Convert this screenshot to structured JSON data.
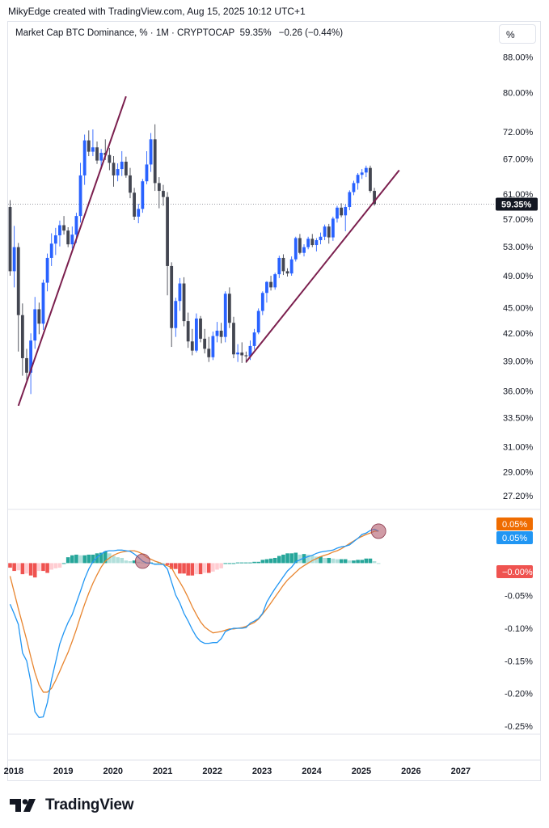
{
  "header": {
    "credit": "MikyEdge created with TradingView.com, Aug 15, 2025 10:12 UTC+1",
    "symbol": "Market Cap BTC Dominance, % · 1M · CRYPTOCAP",
    "last": "59.35%",
    "change": "−0.26 (−0.44%)",
    "scale_button": "%"
  },
  "brand": {
    "name": "TradingView"
  },
  "colors": {
    "up": "#2962ff",
    "down": "#434651",
    "trendline": "#7b1f4e",
    "macd": "#2196f3",
    "signal": "#e8852f",
    "hist_up_strong": "#26a69a",
    "hist_up_weak": "#b2dfdb",
    "hist_dn_strong": "#ef5350",
    "hist_dn_weak": "#ffcdd2"
  },
  "chart_data": [
    {
      "type": "candlestick",
      "title": "Market Cap BTC Dominance, % · 1M · CRYPTOCAP",
      "scale": "log",
      "ylim": [
        26.5,
        92
      ],
      "y_ticks": [
        "88.00%",
        "80.00%",
        "72.00%",
        "67.00%",
        "61.00%",
        "57.00%",
        "53.00%",
        "49.00%",
        "45.00%",
        "42.00%",
        "39.00%",
        "36.00%",
        "33.50%",
        "31.00%",
        "29.00%",
        "27.20%"
      ],
      "y_tick_values": [
        88,
        80,
        72,
        67,
        61,
        57,
        53,
        49,
        45,
        42,
        39,
        36,
        33.5,
        31,
        29,
        27.2
      ],
      "x_ticks": [
        "2018",
        "2019",
        "2020",
        "2021",
        "2022",
        "2023",
        "2024",
        "2025",
        "2026",
        "2027"
      ],
      "current_value_label": "59.35%",
      "start": "2017-12",
      "ohlc": [
        [
          58.9,
          60,
          49,
          49.6
        ],
        [
          49.6,
          56,
          47.5,
          52.9
        ],
        [
          52.9,
          53.5,
          40,
          44.1
        ],
        [
          44.1,
          45.5,
          37.5,
          39.3
        ],
        [
          39.3,
          40.3,
          36.8,
          37.8
        ],
        [
          37.8,
          42,
          35.7,
          41.2
        ],
        [
          41.2,
          46.3,
          40.3,
          44.8
        ],
        [
          44.8,
          45.6,
          41.9,
          43.1
        ],
        [
          43.1,
          48.5,
          42.4,
          48.1
        ],
        [
          48.1,
          52,
          47,
          51.4
        ],
        [
          51.4,
          54.9,
          50.3,
          53.4
        ],
        [
          53.4,
          55.7,
          51.8,
          54.6
        ],
        [
          54.6,
          56.8,
          53,
          56.1
        ],
        [
          56.1,
          57.5,
          54.7,
          55.3
        ],
        [
          55.3,
          55.8,
          52.9,
          53.3
        ],
        [
          53.3,
          55.9,
          52.7,
          54.7
        ],
        [
          54.7,
          58,
          53.5,
          57.5
        ],
        [
          57.5,
          66.3,
          56.5,
          64.1
        ],
        [
          64.1,
          71.5,
          62.5,
          70.4
        ],
        [
          70.4,
          72.3,
          67.5,
          68.3
        ],
        [
          68.3,
          72.5,
          67.5,
          69.1
        ],
        [
          69.1,
          70.2,
          66.1,
          66.7
        ],
        [
          66.7,
          68.8,
          65.2,
          68.1
        ],
        [
          68.1,
          70.6,
          66.8,
          67.7
        ],
        [
          67.7,
          69,
          65,
          66.3
        ],
        [
          66.3,
          67.5,
          62.2,
          64.1
        ],
        [
          64.1,
          66.2,
          63.1,
          65.2
        ],
        [
          65.2,
          68.4,
          64,
          66.5
        ],
        [
          66.5,
          67.4,
          63.7,
          64.1
        ],
        [
          64.1,
          65.4,
          60.3,
          61.2
        ],
        [
          61.2,
          62,
          56.9,
          57.4
        ],
        [
          57.4,
          59.4,
          56.4,
          58.6
        ],
        [
          58.6,
          63.5,
          58,
          63.1
        ],
        [
          63.1,
          68.4,
          62.6,
          66
        ],
        [
          66,
          71.8,
          64.7,
          70.6
        ],
        [
          70.6,
          73.5,
          61.5,
          62.8
        ],
        [
          62.8,
          63.8,
          58.7,
          61.5
        ],
        [
          61.5,
          62.5,
          59.1,
          60.5
        ],
        [
          60.5,
          61.3,
          46.5,
          50.3
        ],
        [
          50.3,
          50.8,
          40.5,
          42.6
        ],
        [
          42.6,
          46.2,
          41.6,
          45.8
        ],
        [
          45.8,
          48.7,
          44.6,
          48
        ],
        [
          48,
          48.8,
          42.8,
          43.4
        ],
        [
          43.4,
          44.4,
          40.4,
          41.1
        ],
        [
          41.1,
          42.5,
          39.6,
          40.1
        ],
        [
          40.1,
          44.3,
          39.9,
          43.7
        ],
        [
          43.7,
          44,
          41,
          41.4
        ],
        [
          41.4,
          42.5,
          39.8,
          40.3
        ],
        [
          40.3,
          41.6,
          38.9,
          39.4
        ],
        [
          39.4,
          42.2,
          39.1,
          41.7
        ],
        [
          41.7,
          43.3,
          41,
          42.3
        ],
        [
          42.3,
          43.2,
          40.9,
          41.6
        ],
        [
          41.6,
          47,
          41,
          46.7
        ],
        [
          46.7,
          47.5,
          42.6,
          43.2
        ],
        [
          43.2,
          43.9,
          39.3,
          39.7
        ],
        [
          39.7,
          40.8,
          38.9,
          39.9
        ],
        [
          39.9,
          41,
          38.8,
          39.6
        ],
        [
          39.6,
          40,
          38.8,
          39.5
        ],
        [
          39.5,
          41.2,
          39.1,
          40.6
        ],
        [
          40.6,
          42.5,
          40.2,
          42.1
        ],
        [
          42.1,
          44.9,
          41.9,
          44.6
        ],
        [
          44.6,
          47,
          44.1,
          46.8
        ],
        [
          46.8,
          48.3,
          45.6,
          48.2
        ],
        [
          48.2,
          49,
          47.1,
          47.5
        ],
        [
          47.5,
          49.4,
          47.2,
          49.2
        ],
        [
          49.2,
          51.7,
          48.7,
          51.4
        ],
        [
          51.4,
          51.9,
          49.1,
          49.6
        ],
        [
          49.6,
          50,
          48.9,
          49.3
        ],
        [
          49.3,
          51.6,
          49,
          51.2
        ],
        [
          51.2,
          54.4,
          50.9,
          54.2
        ],
        [
          54.2,
          54.8,
          51.9,
          52.1
        ],
        [
          52.1,
          53.3,
          51.6,
          52.9
        ],
        [
          52.9,
          54.4,
          52.6,
          54.1
        ],
        [
          54.1,
          54.8,
          52.9,
          53.2
        ],
        [
          53.2,
          54.2,
          52.3,
          53.9
        ],
        [
          53.9,
          55,
          53.3,
          54.4
        ],
        [
          54.4,
          56.2,
          53.9,
          55.9
        ],
        [
          55.9,
          56.3,
          53.4,
          54.3
        ],
        [
          54.3,
          57.4,
          53.8,
          57.1
        ],
        [
          57.1,
          59.1,
          56.5,
          58.8
        ],
        [
          58.8,
          59.5,
          57.3,
          57.6
        ],
        [
          57.6,
          59.3,
          55.2,
          58.9
        ],
        [
          58.9,
          61.6,
          58.4,
          61.3
        ],
        [
          61.3,
          63.2,
          60.8,
          62.8
        ],
        [
          62.8,
          64.5,
          61.7,
          64.2
        ],
        [
          64.2,
          65.2,
          63.5,
          64.6
        ],
        [
          64.6,
          65.8,
          63.8,
          65.4
        ],
        [
          65.4,
          65.8,
          61.2,
          61.5
        ],
        [
          61.5,
          62,
          59.1,
          59.35
        ]
      ],
      "trendlines": [
        {
          "from": [
            "2018-02",
            34.6
          ],
          "to": [
            "2020-04",
            79.2
          ]
        },
        {
          "from": [
            "2022-09",
            38.9
          ],
          "to": [
            "2025-10",
            65.0
          ]
        }
      ]
    },
    {
      "type": "macd",
      "ylim": [
        -0.265,
        0.07
      ],
      "y_ticks": [
        "-0.05%",
        "-0.10%",
        "-0.15%",
        "-0.20%",
        "-0.25%"
      ],
      "y_tick_values": [
        -0.05,
        -0.1,
        -0.15,
        -0.2,
        -0.25
      ],
      "labels": [
        "0.05%",
        "0.05%",
        "−0.00%"
      ],
      "macd": [
        -0.063,
        -0.078,
        -0.094,
        -0.138,
        -0.15,
        -0.182,
        -0.228,
        -0.237,
        -0.236,
        -0.214,
        -0.179,
        -0.152,
        -0.124,
        -0.106,
        -0.091,
        -0.079,
        -0.061,
        -0.043,
        -0.024,
        -0.009,
        0.002,
        0.009,
        0.014,
        0.018,
        0.019,
        0.019,
        0.02,
        0.02,
        0.019,
        0.018,
        0.014,
        0.009,
        0.003,
        0,
        0,
        -0.002,
        -0.002,
        -0.002,
        -0.009,
        -0.029,
        -0.049,
        -0.061,
        -0.077,
        -0.089,
        -0.102,
        -0.113,
        -0.12,
        -0.123,
        -0.123,
        -0.122,
        -0.122,
        -0.116,
        -0.105,
        -0.102,
        -0.1,
        -0.1,
        -0.1,
        -0.099,
        -0.092,
        -0.089,
        -0.085,
        -0.077,
        -0.06,
        -0.049,
        -0.039,
        -0.03,
        -0.021,
        -0.012,
        -0.006,
        0.002,
        0.005,
        0.008,
        0.01,
        0.012,
        0.015,
        0.017,
        0.018,
        0.019,
        0.02,
        0.023,
        0.025,
        0.026,
        0.028,
        0.033,
        0.038,
        0.044,
        0.046,
        0.05,
        0.052,
        0.049
      ],
      "signal": [
        -0.02,
        -0.045,
        -0.07,
        -0.094,
        -0.118,
        -0.144,
        -0.168,
        -0.187,
        -0.198,
        -0.198,
        -0.192,
        -0.18,
        -0.166,
        -0.151,
        -0.137,
        -0.12,
        -0.102,
        -0.082,
        -0.063,
        -0.046,
        -0.031,
        -0.018,
        -0.006,
        0.003,
        0.008,
        0.012,
        0.015,
        0.017,
        0.018,
        0.019,
        0.019,
        0.017,
        0.014,
        0.009,
        0.006,
        0.003,
        0.001,
        -0.002,
        -0.004,
        -0.007,
        -0.019,
        -0.029,
        -0.04,
        -0.053,
        -0.067,
        -0.079,
        -0.09,
        -0.098,
        -0.103,
        -0.107,
        -0.106,
        -0.105,
        -0.103,
        -0.101,
        -0.101,
        -0.1,
        -0.099,
        -0.097,
        -0.094,
        -0.091,
        -0.086,
        -0.078,
        -0.07,
        -0.061,
        -0.052,
        -0.043,
        -0.034,
        -0.026,
        -0.02,
        -0.014,
        -0.008,
        -0.004,
        0,
        0.004,
        0.007,
        0.01,
        0.012,
        0.014,
        0.017,
        0.019,
        0.022,
        0.026,
        0.03,
        0.034,
        0.038,
        0.041,
        0.044,
        0.046,
        0.049,
        0.049
      ],
      "histogram": [
        -0.007,
        -0.012,
        -0.011,
        -0.017,
        -0.016,
        -0.019,
        -0.022,
        -0.012,
        -0.012,
        -0.015,
        -0.01,
        -0.008,
        -0.007,
        0,
        0.009,
        0.012,
        0.013,
        0.012,
        0.012,
        0.013,
        0.013,
        0.015,
        0.016,
        0.018,
        0.015,
        0.011,
        0.009,
        0.008,
        0.004,
        0.003,
        0.004,
        0.002,
        0.001,
        0.001,
        0.001,
        0,
        0.001,
        0,
        -0.003,
        -0.009,
        -0.009,
        -0.016,
        -0.016,
        -0.019,
        -0.019,
        -0.017,
        -0.017,
        -0.015,
        -0.015,
        -0.013,
        -0.01,
        -0.008,
        0,
        0,
        0,
        0.001,
        0.001,
        0.001,
        0.001,
        0.002,
        0.002,
        0.005,
        0.006,
        0.007,
        0.008,
        0.011,
        0.013,
        0.015,
        0.015,
        0.016,
        0.013,
        0.014,
        0.013,
        0.012,
        0.01,
        0.01,
        0.008,
        0.008,
        0.007,
        0.006,
        0.006,
        0.006,
        0.004,
        0.004,
        0.005,
        0.005,
        0.007,
        0.007,
        0.003,
        0
      ]
    }
  ]
}
